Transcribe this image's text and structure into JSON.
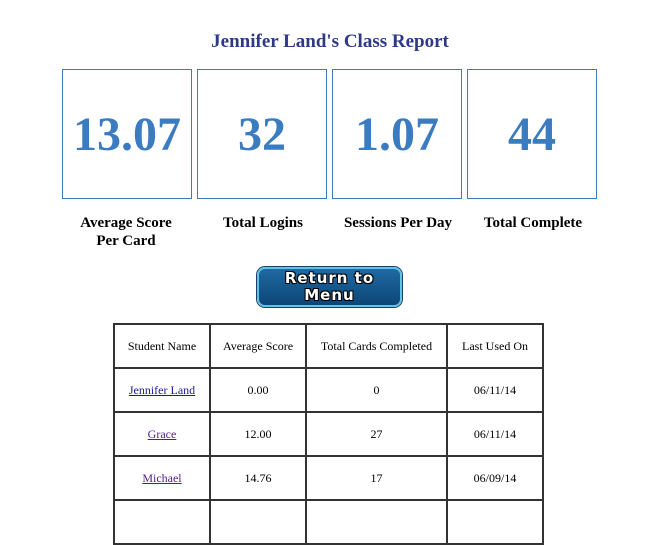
{
  "page": {
    "title": "Jennifer Land's Class Report"
  },
  "stats": [
    {
      "value": "13.07",
      "label_line1": "Average Score",
      "label_line2": "Per Card"
    },
    {
      "value": "32",
      "label_line1": "Total Logins",
      "label_line2": ""
    },
    {
      "value": "1.07",
      "label_line1": "Sessions Per Day",
      "label_line2": ""
    },
    {
      "value": "44",
      "label_line1": "Total Complete",
      "label_line2": ""
    }
  ],
  "menu_button": {
    "line1": "Return to",
    "line2": "Menu"
  },
  "table": {
    "headers": [
      "Student Name",
      "Average Score",
      "Total Cards Completed",
      "Last Used On"
    ],
    "rows": [
      {
        "name": "Jennifer Land",
        "avg": "0.00",
        "completed": "0",
        "last_used": "06/11/14"
      },
      {
        "name": "Grace",
        "avg": "12.00",
        "completed": "27",
        "last_used": "06/11/14"
      },
      {
        "name": "Michael",
        "avg": "14.76",
        "completed": "17",
        "last_used": "06/09/14"
      }
    ]
  },
  "colors": {
    "title": "#2e3a87",
    "stat": "#3b7cc1",
    "link": "#1a1aa6",
    "visited_link": "#551a8b",
    "button": "#0d4577"
  }
}
